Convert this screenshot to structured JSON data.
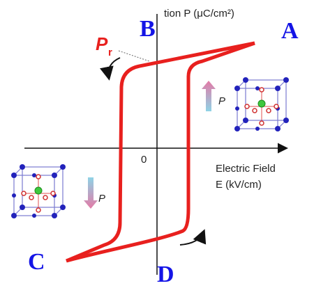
{
  "axis_labels": {
    "y": "tion P (μC/cm²)",
    "x_line1": "Electric Field",
    "x_line2": "E (kV/cm)",
    "origin": "0"
  },
  "points": {
    "a": "A",
    "b": "B",
    "c": "C",
    "d": "D"
  },
  "remanence": {
    "symbol": "P",
    "subscript": "r"
  },
  "cells": {
    "upper": {
      "label": "P"
    },
    "lower": {
      "label": "P"
    }
  }
}
